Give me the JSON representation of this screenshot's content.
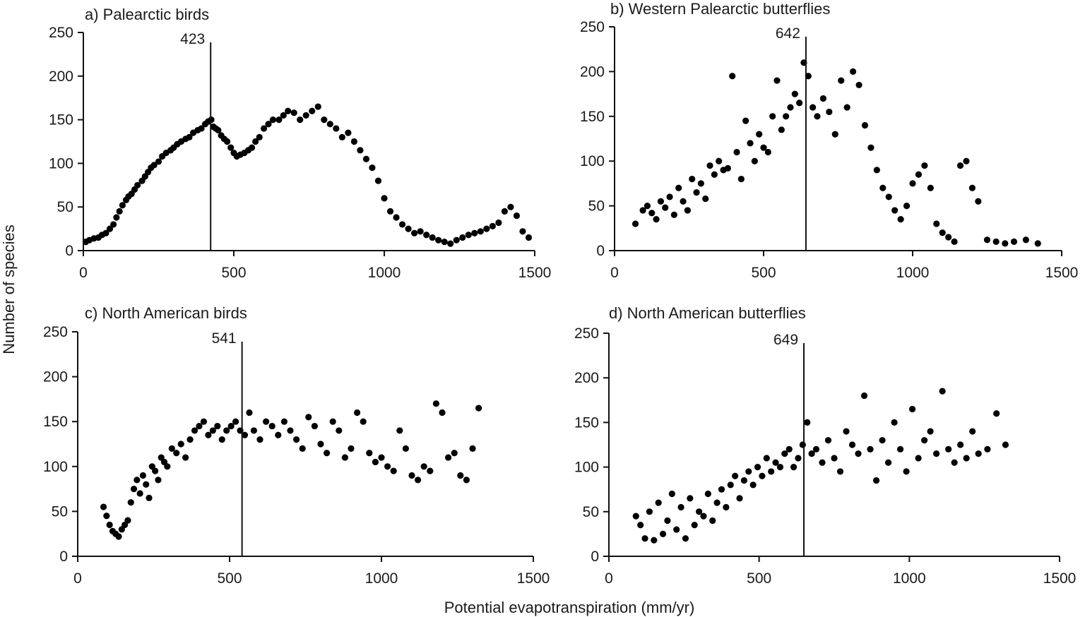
{
  "figure": {
    "ylabel": "Number of species",
    "xlabel": "Potential evapotranspiration (mm/yr)"
  },
  "chart_data": [
    {
      "type": "scatter",
      "title": "a) Palearctic birds",
      "xlim": [
        0,
        1500
      ],
      "ylim": [
        0,
        250
      ],
      "x_ticks": [
        0,
        500,
        1000,
        1500
      ],
      "y_ticks": [
        0,
        50,
        100,
        150,
        200,
        250
      ],
      "vline": {
        "x": 423,
        "label": "423"
      },
      "x": [
        8,
        20,
        35,
        50,
        62,
        75,
        88,
        100,
        110,
        120,
        130,
        142,
        150,
        160,
        170,
        180,
        195,
        205,
        215,
        225,
        235,
        250,
        262,
        275,
        290,
        300,
        312,
        325,
        340,
        352,
        365,
        380,
        392,
        405,
        415,
        425,
        432,
        440,
        448,
        458,
        468,
        478,
        490,
        500,
        510,
        522,
        535,
        548,
        560,
        572,
        585,
        600,
        615,
        630,
        650,
        665,
        680,
        700,
        720,
        740,
        760,
        780,
        800,
        820,
        840,
        860,
        880,
        900,
        920,
        940,
        960,
        980,
        1000,
        1020,
        1040,
        1060,
        1080,
        1100,
        1120,
        1140,
        1160,
        1180,
        1200,
        1220,
        1240,
        1260,
        1280,
        1300,
        1320,
        1340,
        1360,
        1380,
        1400,
        1420,
        1440,
        1460,
        1480
      ],
      "y": [
        10,
        12,
        14,
        15,
        18,
        20,
        25,
        30,
        38,
        45,
        52,
        58,
        62,
        65,
        70,
        75,
        80,
        85,
        90,
        95,
        98,
        102,
        108,
        112,
        115,
        118,
        122,
        125,
        128,
        130,
        135,
        138,
        140,
        145,
        148,
        150,
        142,
        140,
        138,
        132,
        128,
        125,
        118,
        112,
        108,
        110,
        112,
        115,
        118,
        125,
        130,
        140,
        145,
        150,
        150,
        155,
        160,
        158,
        150,
        155,
        160,
        165,
        150,
        145,
        140,
        130,
        135,
        125,
        115,
        105,
        95,
        80,
        60,
        45,
        38,
        30,
        25,
        20,
        22,
        18,
        15,
        12,
        10,
        8,
        12,
        15,
        18,
        20,
        22,
        25,
        28,
        32,
        45,
        50,
        40,
        22,
        15
      ]
    },
    {
      "type": "scatter",
      "title": "b) Western Palearctic butterflies",
      "xlim": [
        0,
        1500
      ],
      "ylim": [
        0,
        250
      ],
      "x_ticks": [
        0,
        500,
        1000,
        1500
      ],
      "y_ticks": [
        0,
        50,
        100,
        150,
        200,
        250
      ],
      "vline": {
        "x": 642,
        "label": "642"
      },
      "x": [
        70,
        95,
        110,
        125,
        140,
        155,
        170,
        185,
        200,
        215,
        230,
        245,
        260,
        275,
        290,
        305,
        320,
        335,
        350,
        365,
        380,
        395,
        410,
        425,
        440,
        455,
        470,
        485,
        500,
        515,
        530,
        545,
        560,
        575,
        590,
        605,
        620,
        635,
        650,
        665,
        680,
        700,
        720,
        740,
        760,
        780,
        800,
        820,
        840,
        860,
        880,
        900,
        920,
        940,
        960,
        980,
        1000,
        1020,
        1040,
        1060,
        1080,
        1100,
        1120,
        1140,
        1160,
        1180,
        1200,
        1220,
        1250,
        1280,
        1310,
        1340,
        1380,
        1420
      ],
      "y": [
        30,
        45,
        50,
        42,
        35,
        55,
        48,
        60,
        40,
        70,
        55,
        45,
        80,
        65,
        75,
        58,
        95,
        85,
        100,
        90,
        92,
        195,
        110,
        80,
        145,
        120,
        100,
        130,
        115,
        110,
        150,
        190,
        135,
        150,
        160,
        175,
        165,
        210,
        195,
        160,
        150,
        170,
        155,
        130,
        190,
        160,
        200,
        185,
        140,
        115,
        90,
        70,
        60,
        45,
        35,
        50,
        75,
        85,
        95,
        70,
        30,
        20,
        15,
        10,
        95,
        100,
        70,
        55,
        12,
        10,
        8,
        10,
        12,
        8
      ]
    },
    {
      "type": "scatter",
      "title": "c) North American birds",
      "xlim": [
        0,
        1500
      ],
      "ylim": [
        0,
        250
      ],
      "x_ticks": [
        0,
        500,
        1000,
        1500
      ],
      "y_ticks": [
        0,
        50,
        100,
        150,
        200,
        250
      ],
      "vline": {
        "x": 541,
        "label": "541"
      },
      "x": [
        85,
        95,
        105,
        115,
        125,
        135,
        145,
        155,
        165,
        175,
        185,
        195,
        205,
        215,
        225,
        235,
        245,
        255,
        265,
        275,
        285,
        295,
        310,
        325,
        340,
        355,
        370,
        385,
        400,
        415,
        430,
        445,
        460,
        475,
        490,
        505,
        520,
        535,
        550,
        565,
        580,
        600,
        620,
        640,
        660,
        680,
        700,
        720,
        740,
        760,
        780,
        800,
        820,
        840,
        860,
        880,
        900,
        920,
        940,
        960,
        980,
        1000,
        1020,
        1040,
        1060,
        1080,
        1100,
        1120,
        1140,
        1160,
        1180,
        1200,
        1220,
        1240,
        1260,
        1280,
        1300,
        1320
      ],
      "y": [
        55,
        45,
        35,
        28,
        25,
        22,
        30,
        35,
        40,
        60,
        75,
        85,
        70,
        90,
        80,
        65,
        100,
        95,
        85,
        110,
        105,
        100,
        120,
        115,
        125,
        110,
        130,
        140,
        145,
        150,
        135,
        140,
        145,
        130,
        140,
        145,
        150,
        140,
        135,
        160,
        140,
        130,
        150,
        145,
        135,
        150,
        140,
        130,
        120,
        155,
        145,
        125,
        115,
        150,
        140,
        110,
        120,
        160,
        150,
        115,
        105,
        110,
        100,
        95,
        140,
        120,
        90,
        85,
        100,
        95,
        170,
        160,
        110,
        115,
        90,
        85,
        120,
        165
      ]
    },
    {
      "type": "scatter",
      "title": "d) North American butterflies",
      "xlim": [
        0,
        1500
      ],
      "ylim": [
        0,
        250
      ],
      "x_ticks": [
        0,
        500,
        1000,
        1500
      ],
      "y_ticks": [
        0,
        50,
        100,
        150,
        200,
        250
      ],
      "vline": {
        "x": 649,
        "label": "649"
      },
      "x": [
        90,
        105,
        120,
        135,
        150,
        165,
        180,
        195,
        210,
        225,
        240,
        255,
        270,
        285,
        300,
        315,
        330,
        345,
        360,
        375,
        390,
        405,
        420,
        435,
        450,
        465,
        480,
        495,
        510,
        525,
        540,
        555,
        570,
        585,
        600,
        615,
        630,
        645,
        660,
        675,
        690,
        710,
        730,
        750,
        770,
        790,
        810,
        830,
        850,
        870,
        890,
        910,
        930,
        950,
        970,
        990,
        1010,
        1030,
        1050,
        1070,
        1090,
        1110,
        1130,
        1150,
        1170,
        1190,
        1210,
        1230,
        1260,
        1290,
        1320
      ],
      "y": [
        45,
        35,
        20,
        50,
        18,
        60,
        25,
        40,
        70,
        30,
        55,
        20,
        65,
        35,
        50,
        45,
        70,
        40,
        60,
        75,
        55,
        80,
        90,
        65,
        85,
        95,
        80,
        100,
        90,
        110,
        95,
        105,
        100,
        115,
        120,
        100,
        110,
        125,
        150,
        115,
        120,
        105,
        130,
        110,
        95,
        140,
        125,
        115,
        180,
        120,
        85,
        130,
        105,
        150,
        120,
        95,
        165,
        110,
        130,
        140,
        115,
        185,
        120,
        105,
        125,
        110,
        140,
        115,
        120,
        160,
        125
      ]
    }
  ]
}
